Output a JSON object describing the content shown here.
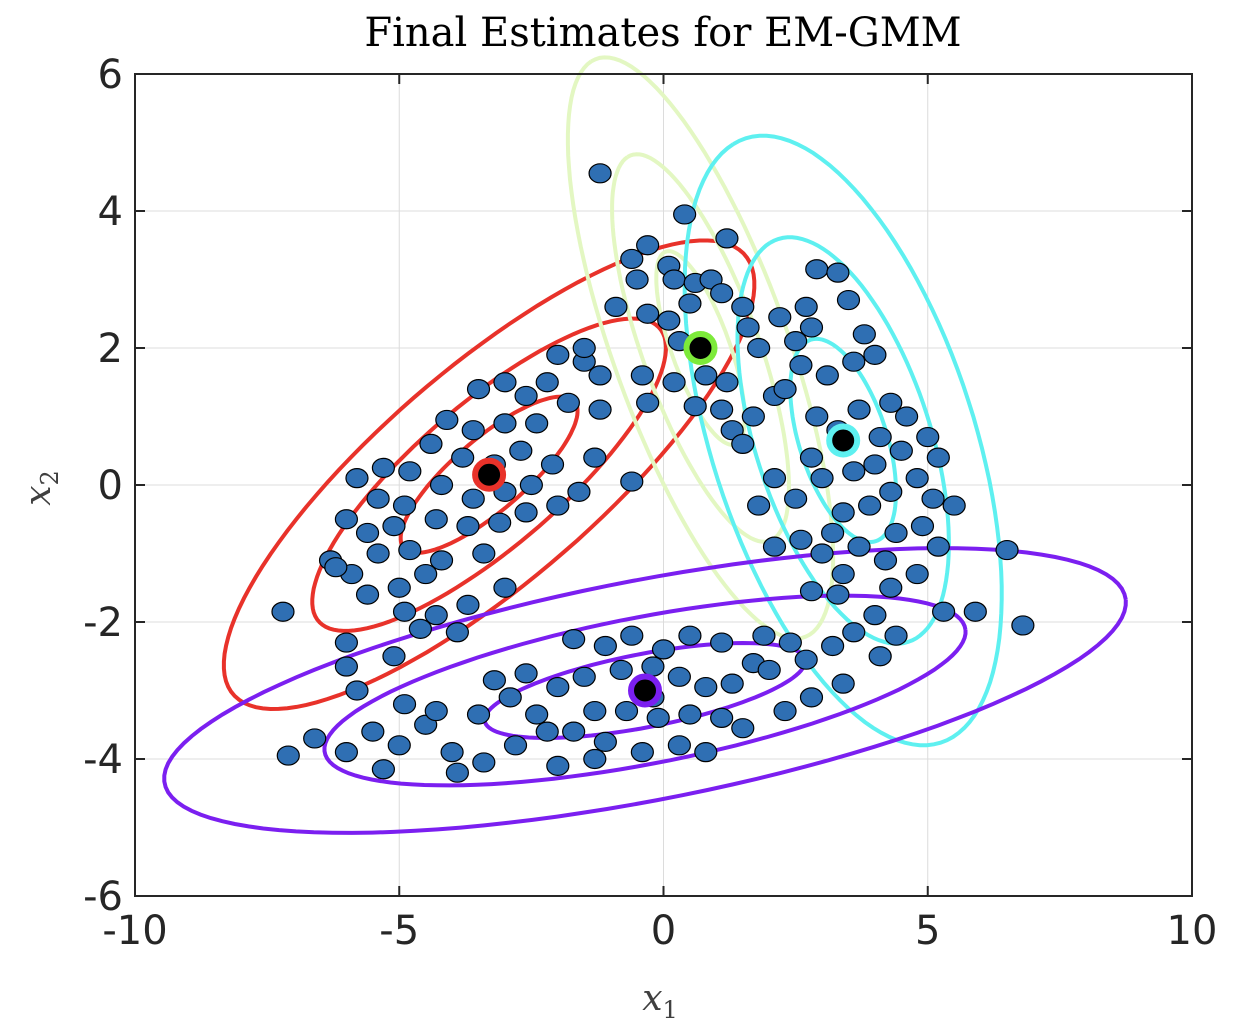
{
  "chart_data": {
    "type": "scatter",
    "title": "Final Estimates for EM-GMM",
    "xlabel": "x",
    "xlabel_sub": "1",
    "ylabel": "x",
    "ylabel_sub": "2",
    "xlim": [
      -10,
      10
    ],
    "ylim": [
      -6,
      6
    ],
    "xticks": [
      -10,
      -5,
      0,
      5,
      10
    ],
    "yticks": [
      -6,
      -4,
      -2,
      0,
      2,
      4,
      6
    ],
    "xtick_labels": [
      "-10",
      "-5",
      "0",
      "5",
      "10"
    ],
    "ytick_labels": [
      "-6",
      "-4",
      "-2",
      "0",
      "2",
      "4",
      "6"
    ],
    "grid": true,
    "point_color": "#2f6fb3",
    "point_edge": "#000000",
    "components": [
      {
        "name": "red",
        "color": "#e8322a",
        "mean": [
          -3.3,
          0.15
        ],
        "sigma": [
          [
            2.8,
            1.55
          ],
          [
            1.55,
            1.3
          ]
        ]
      },
      {
        "name": "green",
        "color": "#7dea3a",
        "ellipse_color": "#e3f7c2",
        "mean": [
          0.7,
          2.0
        ],
        "sigma": [
          [
            0.7,
            -0.85
          ],
          [
            -0.85,
            2.0
          ]
        ]
      },
      {
        "name": "cyan",
        "color": "#5ef0f0",
        "mean": [
          3.4,
          0.65
        ],
        "sigma": [
          [
            1.0,
            -0.75
          ],
          [
            -0.75,
            2.2
          ]
        ]
      },
      {
        "name": "purple",
        "color": "#7b1ff0",
        "mean": [
          -0.35,
          -3.0
        ],
        "sigma": [
          [
            9.2,
            1.3
          ],
          [
            1.3,
            0.48
          ]
        ]
      }
    ],
    "points": [
      [
        -1.2,
        4.55
      ],
      [
        0.4,
        3.95
      ],
      [
        1.2,
        3.6
      ],
      [
        -0.6,
        3.3
      ],
      [
        -0.3,
        3.5
      ],
      [
        0.1,
        3.2
      ],
      [
        -0.5,
        3.0
      ],
      [
        0.2,
        3.0
      ],
      [
        0.6,
        2.95
      ],
      [
        0.9,
        3.0
      ],
      [
        1.1,
        2.8
      ],
      [
        1.6,
        2.3
      ],
      [
        0.5,
        2.65
      ],
      [
        0.1,
        2.4
      ],
      [
        -0.3,
        2.5
      ],
      [
        1.5,
        2.6
      ],
      [
        0.3,
        2.1
      ],
      [
        0.8,
        1.6
      ],
      [
        0.2,
        1.5
      ],
      [
        -0.4,
        1.6
      ],
      [
        -0.3,
        1.2
      ],
      [
        1.1,
        1.1
      ],
      [
        0.6,
        1.15
      ],
      [
        1.3,
        0.8
      ],
      [
        1.8,
        2.0
      ],
      [
        1.2,
        1.5
      ],
      [
        1.5,
        0.6
      ],
      [
        1.7,
        1.0
      ],
      [
        2.1,
        1.3
      ],
      [
        2.9,
        3.15
      ],
      [
        3.3,
        3.1
      ],
      [
        3.5,
        2.7
      ],
      [
        2.7,
        2.6
      ],
      [
        2.2,
        2.45
      ],
      [
        2.5,
        2.1
      ],
      [
        2.8,
        2.3
      ],
      [
        3.8,
        2.2
      ],
      [
        4.0,
        1.9
      ],
      [
        3.6,
        1.8
      ],
      [
        3.1,
        1.6
      ],
      [
        2.6,
        1.75
      ],
      [
        2.3,
        1.4
      ],
      [
        2.9,
        1.0
      ],
      [
        3.7,
        1.1
      ],
      [
        4.3,
        1.2
      ],
      [
        4.6,
        1.0
      ],
      [
        4.1,
        0.7
      ],
      [
        3.3,
        0.8
      ],
      [
        2.8,
        0.4
      ],
      [
        3.0,
        0.1
      ],
      [
        3.6,
        0.2
      ],
      [
        4.0,
        0.3
      ],
      [
        4.5,
        0.5
      ],
      [
        5.0,
        0.7
      ],
      [
        5.2,
        0.4
      ],
      [
        4.8,
        0.1
      ],
      [
        4.3,
        -0.1
      ],
      [
        3.9,
        -0.3
      ],
      [
        3.4,
        -0.4
      ],
      [
        2.5,
        -0.2
      ],
      [
        2.1,
        0.1
      ],
      [
        1.8,
        -0.3
      ],
      [
        3.2,
        -0.7
      ],
      [
        3.7,
        -0.9
      ],
      [
        4.4,
        -0.7
      ],
      [
        5.1,
        -0.2
      ],
      [
        5.5,
        -0.3
      ],
      [
        4.9,
        -0.6
      ],
      [
        4.2,
        -1.1
      ],
      [
        3.0,
        -1.0
      ],
      [
        2.6,
        -0.8
      ],
      [
        2.1,
        -0.9
      ],
      [
        3.4,
        -1.3
      ],
      [
        4.8,
        -1.3
      ],
      [
        5.2,
        -0.9
      ],
      [
        6.5,
        -0.95
      ],
      [
        6.8,
        -2.05
      ],
      [
        5.3,
        -1.85
      ],
      [
        5.9,
        -1.85
      ],
      [
        4.3,
        -1.5
      ],
      [
        4.0,
        -1.9
      ],
      [
        3.3,
        -1.6
      ],
      [
        2.8,
        -1.55
      ],
      [
        4.4,
        -2.2
      ],
      [
        3.6,
        -2.15
      ],
      [
        4.1,
        -2.5
      ],
      [
        3.2,
        -2.35
      ],
      [
        2.4,
        -2.3
      ],
      [
        2.7,
        -2.55
      ],
      [
        -3.5,
        1.4
      ],
      [
        -3.0,
        1.5
      ],
      [
        -2.6,
        1.3
      ],
      [
        -2.2,
        1.5
      ],
      [
        -1.5,
        1.8
      ],
      [
        -2.0,
        1.9
      ],
      [
        -1.2,
        1.6
      ],
      [
        -1.8,
        1.2
      ],
      [
        -2.4,
        0.9
      ],
      [
        -3.0,
        0.9
      ],
      [
        -3.6,
        0.8
      ],
      [
        -4.1,
        0.95
      ],
      [
        -4.4,
        0.6
      ],
      [
        -3.8,
        0.4
      ],
      [
        -3.2,
        0.3
      ],
      [
        -2.7,
        0.5
      ],
      [
        -2.1,
        0.3
      ],
      [
        -1.3,
        0.4
      ],
      [
        -1.2,
        1.1
      ],
      [
        -2.5,
        0.0
      ],
      [
        -3.0,
        -0.1
      ],
      [
        -3.6,
        -0.2
      ],
      [
        -4.2,
        0.0
      ],
      [
        -4.8,
        0.2
      ],
      [
        -5.3,
        0.25
      ],
      [
        -5.8,
        0.1
      ],
      [
        -5.4,
        -0.2
      ],
      [
        -4.9,
        -0.3
      ],
      [
        -4.3,
        -0.5
      ],
      [
        -3.7,
        -0.6
      ],
      [
        -3.1,
        -0.55
      ],
      [
        -2.6,
        -0.4
      ],
      [
        -2.0,
        -0.3
      ],
      [
        -1.6,
        -0.1
      ],
      [
        -0.6,
        0.05
      ],
      [
        -5.1,
        -0.6
      ],
      [
        -5.6,
        -0.7
      ],
      [
        -6.0,
        -0.5
      ],
      [
        -6.3,
        -1.1
      ],
      [
        -5.9,
        -1.3
      ],
      [
        -5.4,
        -1.0
      ],
      [
        -4.8,
        -0.95
      ],
      [
        -4.2,
        -1.1
      ],
      [
        -3.4,
        -1.0
      ],
      [
        -4.5,
        -1.3
      ],
      [
        -5.0,
        -1.5
      ],
      [
        -5.6,
        -1.6
      ],
      [
        -6.2,
        -1.2
      ],
      [
        -4.9,
        -1.85
      ],
      [
        -4.3,
        -1.9
      ],
      [
        -3.7,
        -1.75
      ],
      [
        -3.0,
        -1.5
      ],
      [
        -4.6,
        -2.1
      ],
      [
        -6.0,
        -2.3
      ],
      [
        -5.1,
        -2.5
      ],
      [
        -6.0,
        -2.65
      ],
      [
        -7.2,
        -1.85
      ],
      [
        -3.9,
        -2.15
      ],
      [
        -1.5,
        2.0
      ],
      [
        -0.9,
        2.6
      ],
      [
        -2.0,
        -4.1
      ],
      [
        -5.8,
        -3.0
      ],
      [
        -6.6,
        -3.7
      ],
      [
        -7.1,
        -3.95
      ],
      [
        -5.5,
        -3.6
      ],
      [
        -5.0,
        -3.8
      ],
      [
        -4.5,
        -3.5
      ],
      [
        -4.0,
        -3.9
      ],
      [
        -3.4,
        -4.05
      ],
      [
        -2.8,
        -3.8
      ],
      [
        -5.3,
        -4.15
      ],
      [
        -3.9,
        -4.2
      ],
      [
        -6.0,
        -3.9
      ],
      [
        -4.9,
        -3.2
      ],
      [
        -4.3,
        -3.3
      ],
      [
        -3.5,
        -3.35
      ],
      [
        -2.9,
        -3.1
      ],
      [
        -2.4,
        -3.35
      ],
      [
        -1.7,
        -3.6
      ],
      [
        -1.1,
        -3.75
      ],
      [
        -0.4,
        -3.9
      ],
      [
        0.3,
        -3.8
      ],
      [
        -1.3,
        -4.0
      ],
      [
        0.8,
        -3.9
      ],
      [
        -3.2,
        -2.85
      ],
      [
        -2.6,
        -2.75
      ],
      [
        -2.0,
        -2.95
      ],
      [
        -1.5,
        -2.8
      ],
      [
        -0.8,
        -2.7
      ],
      [
        -0.2,
        -2.65
      ],
      [
        0.3,
        -2.8
      ],
      [
        0.8,
        -2.95
      ],
      [
        1.3,
        -2.9
      ],
      [
        1.7,
        -2.6
      ],
      [
        2.0,
        -2.7
      ],
      [
        1.1,
        -2.3
      ],
      [
        0.5,
        -2.2
      ],
      [
        0.0,
        -2.4
      ],
      [
        -0.6,
        -2.2
      ],
      [
        -1.1,
        -2.35
      ],
      [
        -1.7,
        -2.25
      ],
      [
        1.9,
        -2.2
      ],
      [
        -1.3,
        -3.3
      ],
      [
        -0.7,
        -3.3
      ],
      [
        -0.1,
        -3.4
      ],
      [
        0.5,
        -3.35
      ],
      [
        1.1,
        -3.4
      ],
      [
        1.5,
        -3.55
      ],
      [
        2.3,
        -3.3
      ],
      [
        2.8,
        -3.1
      ],
      [
        3.4,
        -2.9
      ],
      [
        -2.2,
        -3.6
      ],
      [
        -0.2,
        -3.1
      ]
    ]
  }
}
